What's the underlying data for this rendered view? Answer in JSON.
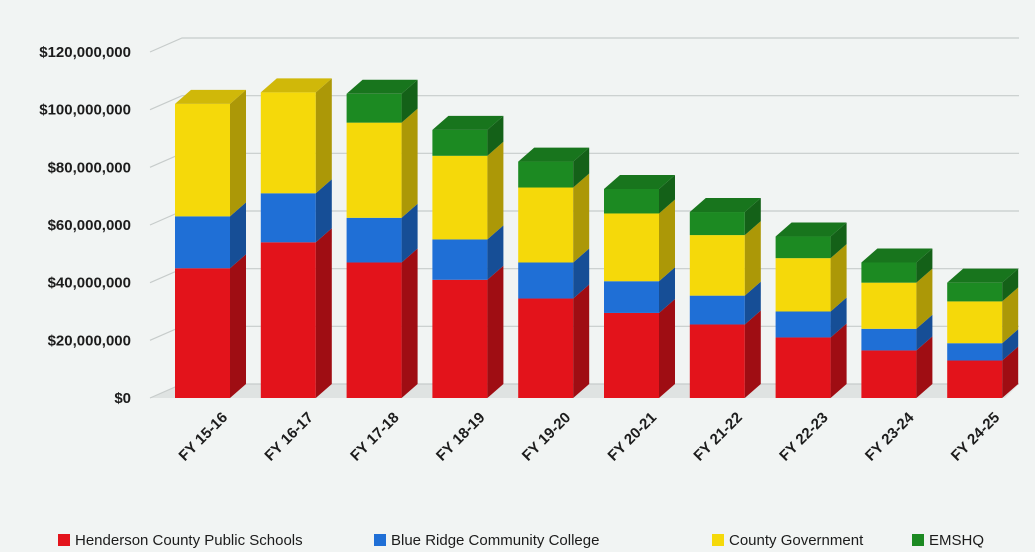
{
  "chart_data": {
    "type": "bar",
    "stacked": true,
    "three_d": true,
    "categories": [
      "FY 15-16",
      "FY 16-17",
      "FY 17-18",
      "FY 18-19",
      "FY 19-20",
      "FY 20-21",
      "FY 21-22",
      "FY 22-23",
      "FY 23-24",
      "FY 24-25"
    ],
    "series": [
      {
        "name": "Henderson County Public Schools",
        "color": "#e3131b",
        "values": [
          45000000,
          54000000,
          47000000,
          41000000,
          34500000,
          29500000,
          25500000,
          21000000,
          16500000,
          13000000
        ]
      },
      {
        "name": "Blue Ridge Community College",
        "color": "#1f6fd6",
        "values": [
          18000000,
          17000000,
          15500000,
          14000000,
          12500000,
          11000000,
          10000000,
          9000000,
          7500000,
          6000000
        ]
      },
      {
        "name": "County Government",
        "color": "#f5d90a",
        "values": [
          39000000,
          35000000,
          33000000,
          29000000,
          26000000,
          23500000,
          21000000,
          18500000,
          16000000,
          14500000
        ]
      },
      {
        "name": "EMSHQ",
        "color": "#1c8a22",
        "values": [
          0,
          0,
          10000000,
          9000000,
          9000000,
          8500000,
          8000000,
          7500000,
          7000000,
          6500000
        ]
      }
    ],
    "yticks": [
      "$0",
      "$20,000,000",
      "$40,000,000",
      "$60,000,000",
      "$80,000,000",
      "$100,000,000",
      "$120,000,000"
    ],
    "ylim": [
      0,
      120000000
    ],
    "grid": true,
    "legend": "bottom"
  }
}
